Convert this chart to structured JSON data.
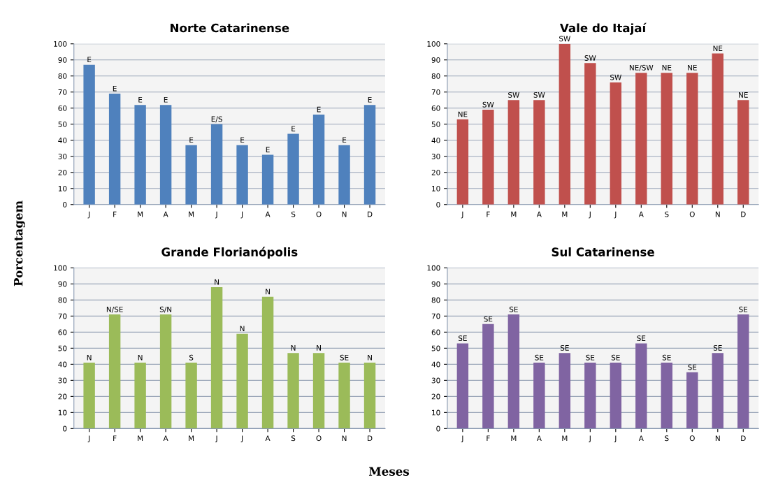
{
  "chart_data": [
    {
      "type": "bar",
      "title": "Norte Catarinense",
      "ylabel": "Porcentagem",
      "categories": [
        "J",
        "F",
        "M",
        "A",
        "M",
        "J",
        "J",
        "A",
        "S",
        "O",
        "N",
        "D"
      ],
      "values": [
        87,
        69,
        62,
        62,
        37,
        50,
        37,
        31,
        44,
        56,
        37,
        62
      ],
      "value_labels": [
        "E",
        "E",
        "E",
        "E",
        "E",
        "E/S",
        "E",
        "E",
        "E",
        "E",
        "E",
        "E"
      ],
      "color": "#4f81bd",
      "ylim": [
        0,
        100
      ],
      "yticks": [
        0,
        10,
        20,
        30,
        40,
        50,
        60,
        70,
        80,
        90,
        100
      ],
      "grid": "y"
    },
    {
      "type": "bar",
      "title": "Vale do Itajaí",
      "categories": [
        "J",
        "F",
        "M",
        "A",
        "M",
        "J",
        "J",
        "A",
        "S",
        "O",
        "N",
        "D"
      ],
      "values": [
        53,
        59,
        65,
        65,
        100,
        88,
        76,
        82,
        82,
        82,
        94,
        65
      ],
      "value_labels": [
        "NE",
        "SW",
        "SW",
        "SW",
        "SW",
        "SW",
        "SW",
        "NE/SW",
        "NE",
        "NE",
        "NE",
        "NE"
      ],
      "color": "#c0504d",
      "ylim": [
        0,
        100
      ],
      "yticks": [
        0,
        10,
        20,
        30,
        40,
        50,
        60,
        70,
        80,
        90,
        100
      ],
      "grid": "y"
    },
    {
      "type": "bar",
      "title": "Grande Florianópolis",
      "xlabel": "Meses",
      "categories": [
        "J",
        "F",
        "M",
        "A",
        "M",
        "J",
        "J",
        "A",
        "S",
        "O",
        "N",
        "D"
      ],
      "values": [
        41,
        71,
        41,
        71,
        41,
        88,
        59,
        82,
        47,
        47,
        41,
        41
      ],
      "value_labels": [
        "N",
        "N/SE",
        "N",
        "S/N",
        "S",
        "N",
        "N",
        "N",
        "N",
        "N",
        "SE",
        "N"
      ],
      "color": "#9bbb59",
      "ylim": [
        0,
        100
      ],
      "yticks": [
        0,
        10,
        20,
        30,
        40,
        50,
        60,
        70,
        80,
        90,
        100
      ],
      "grid": "y"
    },
    {
      "type": "bar",
      "title": "Sul Catarinense",
      "categories": [
        "J",
        "F",
        "M",
        "A",
        "M",
        "J",
        "J",
        "A",
        "S",
        "O",
        "N",
        "D"
      ],
      "values": [
        53,
        65,
        71,
        41,
        47,
        41,
        41,
        53,
        41,
        35,
        47,
        71
      ],
      "value_labels": [
        "SE",
        "SE",
        "SE",
        "SE",
        "SE",
        "SE",
        "SE",
        "SE",
        "SE",
        "SE",
        "SE",
        "SE"
      ],
      "color": "#8064a2",
      "ylim": [
        0,
        100
      ],
      "yticks": [
        0,
        10,
        20,
        30,
        40,
        50,
        60,
        70,
        80,
        90,
        100
      ],
      "grid": "y"
    }
  ]
}
